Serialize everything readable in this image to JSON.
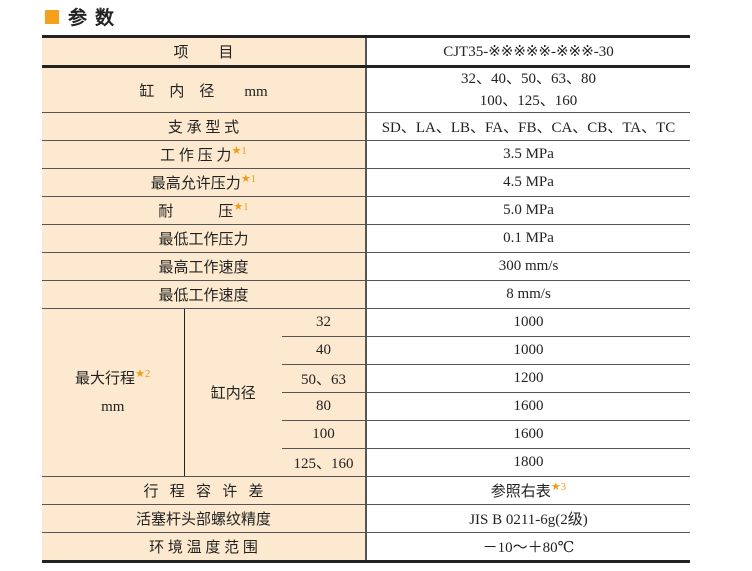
{
  "title": "参数",
  "accent": "#f7a01b",
  "header": {
    "item": "项        目",
    "model": "CJT35-※※※※※-※※※-30"
  },
  "rows": [
    {
      "label": "缸    内    径        mm",
      "value_lines": [
        "32、40、50、63、80",
        "100、125、160"
      ]
    },
    {
      "label": "支 承 型 式",
      "value": "SD、LA、LB、FA、FB、CA、CB、TA、TC"
    },
    {
      "label": "工 作 压 力",
      "note": "★1",
      "value": "3.5 MPa"
    },
    {
      "label": "最高允许压力",
      "note": "★1",
      "value": "4.5 MPa"
    },
    {
      "label": "耐            压",
      "note": "★1",
      "value": "5.0 MPa"
    },
    {
      "label": "最低工作压力",
      "value": "0.1 MPa"
    },
    {
      "label": "最高工作速度",
      "value": "300 mm/s"
    },
    {
      "label": "最低工作速度",
      "value": "8 mm/s"
    }
  ],
  "stroke": {
    "label": "最大行程",
    "note": "★2",
    "unit": "mm",
    "sub": "缸内径",
    "items": [
      {
        "bore": "32",
        "value": "1000"
      },
      {
        "bore": "40",
        "value": "1000"
      },
      {
        "bore": "50、63",
        "value": "1200"
      },
      {
        "bore": "80",
        "value": "1600"
      },
      {
        "bore": "100",
        "value": "1600"
      },
      {
        "bore": "125、160",
        "value": "1800"
      }
    ]
  },
  "tail": [
    {
      "label": "行   程   容   许   差",
      "value": "参照右表",
      "note": "★3"
    },
    {
      "label": "活塞杆头部螺纹精度",
      "value": "JIS B 0211-6g(2级)"
    },
    {
      "label": "环 境 温 度 范 围",
      "value": "－10～＋80℃"
    }
  ]
}
